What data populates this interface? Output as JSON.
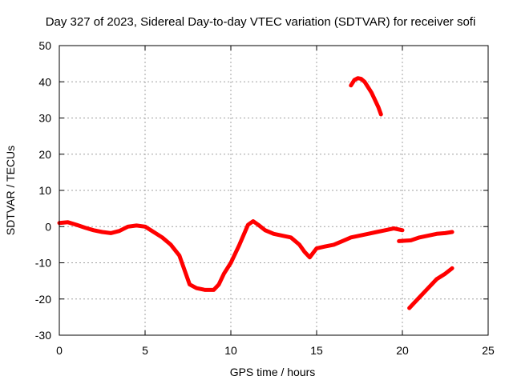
{
  "chart_data": {
    "type": "line",
    "title": "Day 327 of 2023, Sidereal Day-to-day VTEC variation (SDTVAR) for receiver sofi",
    "xlabel": "GPS time / hours",
    "ylabel": "SDTVAR / TECUs",
    "xlim": [
      0,
      25
    ],
    "ylim": [
      -30,
      50
    ],
    "xticks": [
      0,
      5,
      10,
      15,
      20,
      25
    ],
    "yticks": [
      -30,
      -20,
      -10,
      0,
      10,
      20,
      30,
      40,
      50
    ],
    "grid": true,
    "series": [
      {
        "name": "sofi-main",
        "color": "#ff0000",
        "x": [
          0,
          0.5,
          1,
          1.5,
          2,
          2.5,
          3,
          3.5,
          4,
          4.5,
          5,
          5.5,
          6,
          6.5,
          7,
          7.3,
          7.6,
          8,
          8.5,
          9,
          9.3,
          9.6,
          10,
          10.5,
          11,
          11.3,
          11.6,
          12,
          12.5,
          13,
          13.5,
          14,
          14.3,
          14.6,
          15,
          15.5,
          16,
          16.5,
          17,
          17.5,
          18,
          18.5,
          19,
          19.5,
          20
        ],
        "y": [
          1,
          1.2,
          0.5,
          -0.3,
          -1,
          -1.5,
          -1.8,
          -1.2,
          0,
          0.3,
          0,
          -1.5,
          -3,
          -5,
          -8,
          -12,
          -16,
          -17,
          -17.5,
          -17.5,
          -16,
          -13,
          -10,
          -5,
          0.5,
          1.5,
          0.5,
          -1,
          -2,
          -2.5,
          -3,
          -5,
          -7,
          -8.5,
          -6,
          -5.5,
          -5,
          -4,
          -3,
          -2.5,
          -2,
          -1.5,
          -1,
          -0.5,
          -1
        ]
      },
      {
        "name": "sofi-segment-2",
        "color": "#ff0000",
        "x": [
          19.8,
          20.5,
          21,
          21.5,
          22,
          22.5,
          22.9
        ],
        "y": [
          -4,
          -3.8,
          -3,
          -2.5,
          -2,
          -1.8,
          -1.5
        ]
      },
      {
        "name": "sofi-segment-3",
        "color": "#ff0000",
        "x": [
          20.4,
          21,
          21.5,
          22,
          22.5,
          22.9
        ],
        "y": [
          -22.5,
          -19.5,
          -17,
          -14.5,
          -13,
          -11.5
        ]
      },
      {
        "name": "sofi-segment-4",
        "color": "#ff0000",
        "x": [
          17,
          17.2,
          17.4,
          17.6,
          17.8,
          18,
          18.2,
          18.4,
          18.6,
          18.75
        ],
        "y": [
          39,
          40.5,
          41,
          40.8,
          40,
          38.5,
          37,
          35,
          33,
          31
        ]
      }
    ]
  }
}
